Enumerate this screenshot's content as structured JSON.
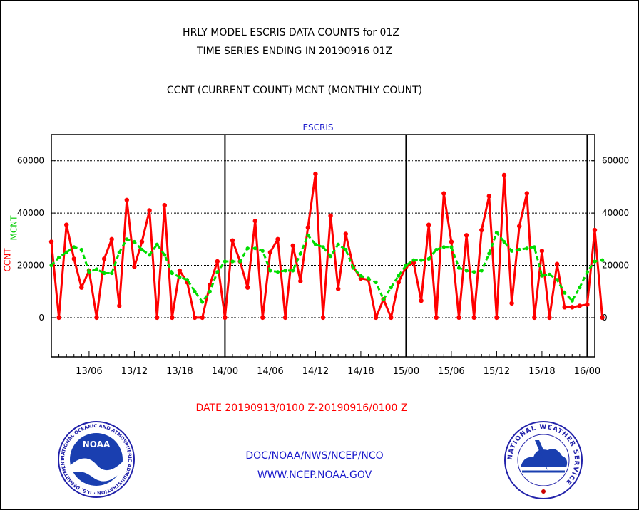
{
  "header": {
    "line1": "HRLY MODEL ESCRIS DATA COUNTS for 01Z",
    "line2": "TIME SERIES ENDING IN 20190916 01Z",
    "line3": "CCNT (CURRENT COUNT) MCNT (MONTHLY COUNT)"
  },
  "footer": {
    "org": "DOC/NOAA/NWS/NCEP/NCO",
    "url": "WWW.NCEP.NOAA.GOV"
  },
  "logos": {
    "noaa_text": "NOAA",
    "noaa_ring": "NATIONAL OCEANIC AND ATMOSPHERIC ADMINISTRATION · U.S. DEPARTMENT OF COMMERCE ·",
    "nws_ring": "NATIONAL WEATHER SERVICE"
  },
  "colors": {
    "ccnt": "#ff0000",
    "mcnt": "#00dd00",
    "title": "#1a1acc",
    "date": "#ff0000"
  },
  "chart_data": {
    "type": "line",
    "title": "ESCRIS",
    "xlabel": "DATE 20190913/0100 Z-20190916/0100 Z",
    "ylabel": {
      "series1": "CCNT",
      "series2": "MCNT"
    },
    "x_start_hour": 1,
    "x_end_hour": 73,
    "ylim": [
      -15000,
      70000
    ],
    "yticks": [
      0,
      20000,
      40000,
      60000
    ],
    "ytick_labels": [
      "0",
      "20000",
      "40000",
      "60000"
    ],
    "xticks": [
      {
        "hour": 6,
        "label": "13/06"
      },
      {
        "hour": 12,
        "label": "13/12"
      },
      {
        "hour": 18,
        "label": "13/18"
      },
      {
        "hour": 24,
        "label": "14/00"
      },
      {
        "hour": 30,
        "label": "14/06"
      },
      {
        "hour": 36,
        "label": "14/12"
      },
      {
        "hour": 42,
        "label": "14/18"
      },
      {
        "hour": 48,
        "label": "15/00"
      },
      {
        "hour": 54,
        "label": "15/06"
      },
      {
        "hour": 60,
        "label": "15/12"
      },
      {
        "hour": 66,
        "label": "15/18"
      },
      {
        "hour": 72,
        "label": "16/00"
      }
    ],
    "day_boundaries": [
      24,
      48,
      72
    ],
    "grid": "horizontal",
    "series": [
      {
        "name": "CCNT",
        "style": "solid",
        "values": [
          29000,
          0,
          35500,
          22500,
          11500,
          18000,
          0,
          22500,
          30000,
          4500,
          45000,
          19500,
          29000,
          41000,
          0,
          43000,
          0,
          18000,
          13500,
          0,
          0,
          12500,
          21500,
          0,
          29500,
          21500,
          11500,
          37000,
          0,
          25000,
          30000,
          0,
          27500,
          14000,
          34500,
          55000,
          0,
          39000,
          11000,
          32000,
          19500,
          15000,
          14500,
          0,
          7000,
          0,
          13500,
          19500,
          21000,
          6500,
          35500,
          0,
          47500,
          29000,
          0,
          31500,
          0,
          33500,
          46500,
          0,
          54500,
          5500,
          35000,
          47500,
          0,
          25500,
          0,
          20500,
          4000,
          4000,
          4500,
          5000,
          33500,
          0
        ]
      },
      {
        "name": "MCNT",
        "style": "dashed",
        "values": [
          20000,
          23000,
          25000,
          27000,
          26000,
          17500,
          18500,
          17000,
          17000,
          25000,
          30000,
          29000,
          26000,
          24000,
          28000,
          24000,
          17000,
          15500,
          14500,
          10000,
          6000,
          10000,
          17500,
          21500,
          21500,
          21500,
          26500,
          26500,
          25500,
          18000,
          17500,
          18000,
          18000,
          24500,
          31500,
          28000,
          27000,
          23500,
          28000,
          26000,
          19000,
          16000,
          15000,
          13500,
          7000,
          11500,
          16000,
          20000,
          22000,
          22000,
          22500,
          26000,
          27000,
          27000,
          19000,
          18000,
          17500,
          18000,
          24500,
          32500,
          29000,
          25500,
          26000,
          26500,
          27000,
          16000,
          16500,
          14500,
          9500,
          6500,
          11500,
          17500,
          21500,
          22000
        ]
      }
    ]
  }
}
